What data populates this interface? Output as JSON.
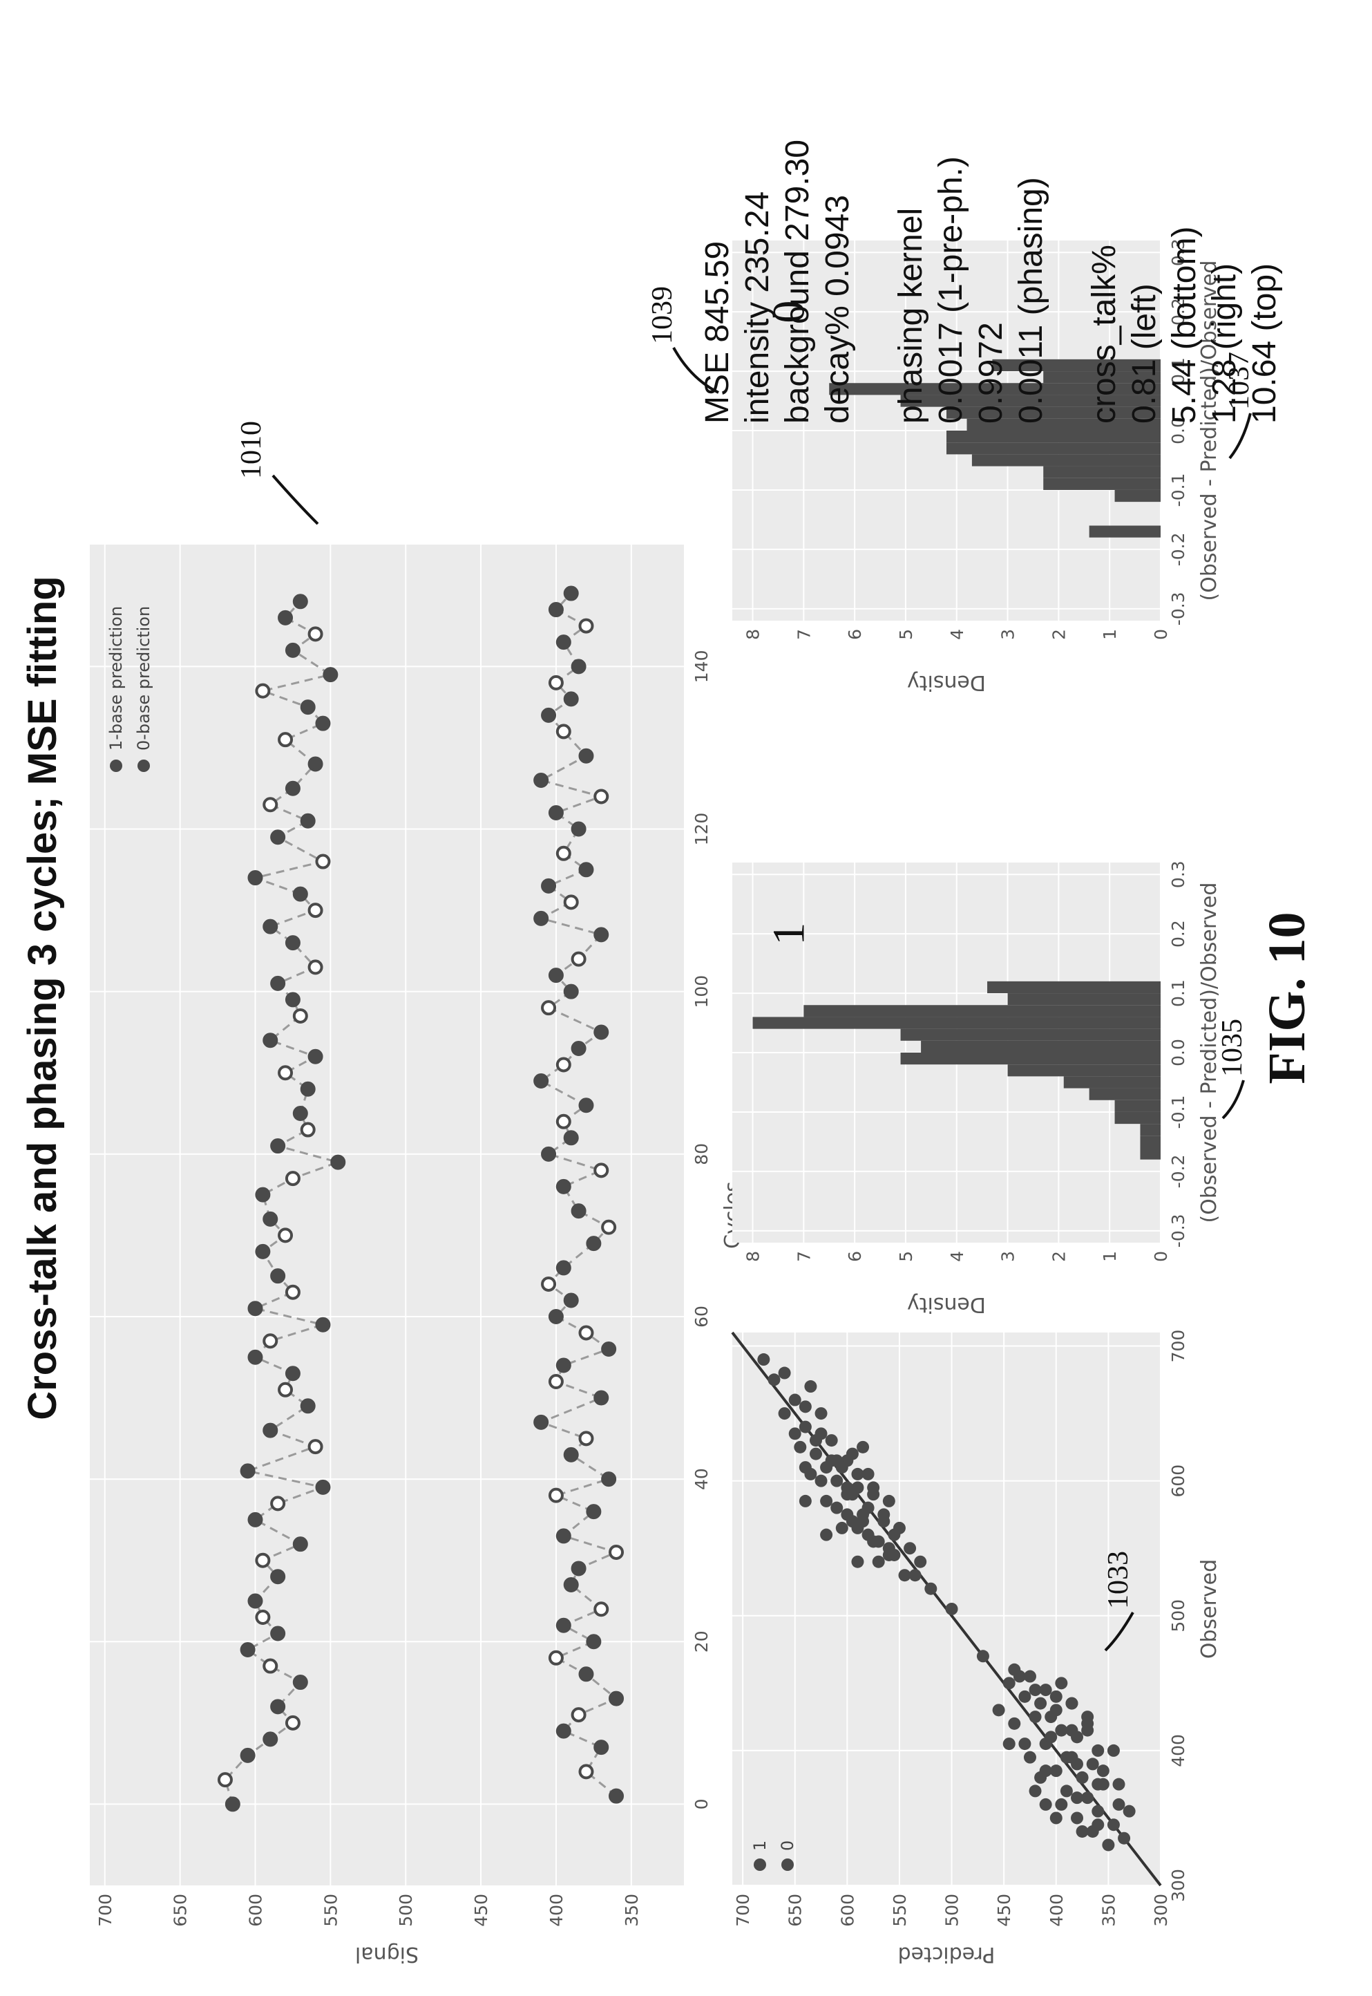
{
  "title": "Cross-talk and phasing 3 cycles; MSE fitting",
  "figure_label": "FIG. 10",
  "refs": {
    "main": "1010",
    "scatter": "1033",
    "hist1": "1035",
    "hist0": "1037",
    "stats": "1039"
  },
  "stats": {
    "mse": "MSE 845.59",
    "intensity": "intensity 235.24",
    "background": "background 279.30",
    "decay": "decay% 0.0943",
    "phasing_title": "phasing kernel",
    "phasing": [
      "0.0017 (1-pre-ph.)",
      "0.9972",
      "0.0011 (phasing)"
    ],
    "crosstalk_title": "cross_talk%",
    "crosstalk": [
      "0.81 (left)",
      "5.44 (bottom)",
      "1.28 (right)",
      "10.64 (top)"
    ]
  },
  "chart_data": [
    {
      "type": "scatter",
      "xlabel": "Cycles",
      "ylabel": "Signal",
      "xlim": [
        -10,
        155
      ],
      "ylim": [
        315,
        710
      ],
      "xticks": [
        0,
        20,
        40,
        60,
        80,
        100,
        120,
        140
      ],
      "yticks": [
        350,
        400,
        450,
        500,
        550,
        600,
        650,
        700
      ],
      "grid": true,
      "legend_position": "top-right",
      "legend": [
        "1-base prediction",
        "0-base prediction"
      ],
      "colors": {
        "observed": "#4a4a4a",
        "predicted_fill": "#ffffff",
        "line": "#9a9a9a",
        "bg": "#ebebeb",
        "grid": "#ffffff"
      },
      "series": [
        {
          "name": "1-base prediction",
          "x": [
            0,
            3,
            6,
            8,
            10,
            12,
            15,
            17,
            19,
            21,
            23,
            25,
            28,
            30,
            32,
            35,
            37,
            39,
            41,
            44,
            46,
            49,
            51,
            53,
            55,
            57,
            59,
            61,
            63,
            65,
            68,
            70,
            72,
            75,
            77,
            79,
            81,
            83,
            85,
            88,
            90,
            92,
            94,
            97,
            99,
            101,
            103,
            106,
            108,
            110,
            112,
            114,
            116,
            119,
            121,
            123,
            125,
            128,
            131,
            133,
            135,
            137,
            139,
            142,
            144,
            146,
            148
          ],
          "y": [
            615,
            620,
            605,
            590,
            575,
            585,
            570,
            590,
            605,
            585,
            595,
            600,
            585,
            595,
            570,
            600,
            585,
            555,
            605,
            560,
            590,
            565,
            580,
            575,
            600,
            590,
            555,
            600,
            575,
            585,
            595,
            580,
            590,
            595,
            575,
            545,
            585,
            565,
            570,
            565,
            580,
            560,
            590,
            570,
            575,
            585,
            560,
            575,
            590,
            560,
            570,
            600,
            555,
            585,
            565,
            590,
            575,
            560,
            580,
            555,
            565,
            595,
            550,
            575,
            560,
            580,
            570
          ]
        },
        {
          "name": "0-base prediction",
          "x": [
            1,
            4,
            7,
            9,
            11,
            13,
            16,
            18,
            20,
            22,
            24,
            27,
            29,
            31,
            33,
            36,
            38,
            40,
            43,
            45,
            47,
            50,
            52,
            54,
            56,
            58,
            60,
            62,
            64,
            66,
            69,
            71,
            73,
            76,
            78,
            80,
            82,
            84,
            86,
            89,
            91,
            93,
            95,
            98,
            100,
            102,
            104,
            107,
            109,
            111,
            113,
            115,
            117,
            120,
            122,
            124,
            126,
            129,
            132,
            134,
            136,
            138,
            140,
            143,
            145,
            147,
            149
          ],
          "y": [
            360,
            380,
            370,
            395,
            385,
            360,
            380,
            400,
            375,
            395,
            370,
            390,
            385,
            360,
            395,
            375,
            400,
            365,
            390,
            380,
            410,
            370,
            400,
            395,
            365,
            380,
            400,
            390,
            405,
            395,
            375,
            365,
            385,
            395,
            370,
            405,
            390,
            395,
            380,
            410,
            395,
            385,
            370,
            405,
            390,
            400,
            385,
            370,
            410,
            390,
            405,
            380,
            395,
            385,
            400,
            370,
            410,
            380,
            395,
            405,
            390,
            400,
            385,
            395,
            380,
            400,
            390
          ]
        }
      ]
    },
    {
      "type": "scatter",
      "xlabel": "Observed",
      "ylabel": "Predicted",
      "xlim": [
        300,
        710
      ],
      "ylim": [
        300,
        710
      ],
      "xticks": [
        300,
        400,
        500,
        600,
        700
      ],
      "yticks": [
        300,
        350,
        400,
        450,
        500,
        550,
        600,
        650,
        700
      ],
      "legend": [
        "1",
        "0"
      ],
      "legend_position": "top-left",
      "reference_line": [
        [
          300,
          300
        ],
        [
          710,
          710
        ]
      ],
      "series": [
        {
          "name": "1",
          "x": [
            505,
            520,
            530,
            540,
            545,
            550,
            555,
            560,
            565,
            570,
            575,
            580,
            585,
            590,
            595,
            600,
            605,
            610,
            615,
            620,
            625,
            630,
            640,
            650,
            660,
            670,
            680,
            690,
            540,
            555,
            565,
            575,
            585,
            595,
            605,
            615,
            625,
            635,
            545,
            560,
            570,
            580,
            590,
            600,
            610,
            620,
            530,
            550,
            570,
            590,
            610,
            630,
            650,
            560,
            575,
            595,
            615,
            635,
            655,
            675,
            540,
            565,
            585,
            605
          ],
          "y": [
            500,
            520,
            545,
            530,
            560,
            540,
            575,
            555,
            590,
            565,
            600,
            580,
            560,
            595,
            575,
            610,
            590,
            620,
            600,
            630,
            585,
            615,
            640,
            625,
            650,
            635,
            660,
            680,
            590,
            570,
            605,
            585,
            620,
            600,
            635,
            615,
            645,
            625,
            555,
            580,
            595,
            610,
            575,
            625,
            640,
            595,
            535,
            560,
            585,
            600,
            605,
            630,
            660,
            620,
            565,
            590,
            610,
            650,
            640,
            670,
            570,
            550,
            640,
            580
          ]
        },
        {
          "name": "0",
          "x": [
            330,
            335,
            340,
            345,
            350,
            355,
            360,
            365,
            370,
            375,
            380,
            385,
            390,
            395,
            400,
            405,
            410,
            415,
            420,
            425,
            430,
            435,
            440,
            445,
            450,
            455,
            460,
            470,
            350,
            365,
            375,
            385,
            395,
            405,
            415,
            425,
            435,
            445,
            340,
            360,
            380,
            400,
            420,
            440,
            355,
            370,
            390,
            410,
            430,
            450,
            345,
            375,
            395,
            415,
            435,
            455,
            360,
            385,
            405,
            425
          ],
          "y": [
            350,
            335,
            365,
            345,
            380,
            360,
            340,
            370,
            390,
            355,
            375,
            400,
            365,
            385,
            360,
            410,
            380,
            395,
            370,
            420,
            400,
            385,
            430,
            410,
            445,
            425,
            440,
            470,
            400,
            380,
            360,
            410,
            390,
            430,
            370,
            405,
            385,
            420,
            375,
            395,
            415,
            345,
            440,
            400,
            330,
            420,
            380,
            405,
            455,
            395,
            360,
            340,
            425,
            385,
            415,
            435,
            410,
            355,
            445,
            370
          ]
        }
      ]
    },
    {
      "type": "bar",
      "name_label": "1",
      "xlabel": "(Observed - Predicted)/Observed",
      "ylabel": "Density",
      "xlim": [
        -0.32,
        0.32
      ],
      "ylim": [
        0,
        8.4
      ],
      "xticks": [
        -0.3,
        -0.2,
        -0.1,
        0.0,
        0.1,
        0.2,
        0.3
      ],
      "xtick_labels": [
        "-0.3",
        "-0.2",
        "-0.1",
        "0.0",
        "0.1",
        "0.2",
        "0.3"
      ],
      "yticks": [
        0,
        1,
        2,
        3,
        4,
        5,
        6,
        7,
        8
      ],
      "bin_edges": [
        -0.18,
        -0.16,
        -0.14,
        -0.12,
        -0.1,
        -0.08,
        -0.06,
        -0.04,
        -0.02,
        0.0,
        0.02,
        0.04,
        0.06,
        0.08,
        0.1,
        0.12
      ],
      "values": [
        0.4,
        0.4,
        0.4,
        0.9,
        0.9,
        1.4,
        1.9,
        3.0,
        5.1,
        4.7,
        5.1,
        8.0,
        7.0,
        3.0,
        3.4
      ]
    },
    {
      "type": "bar",
      "name_label": "0",
      "xlabel": "(Observed - Predicted)/Observed",
      "ylabel": "Density",
      "xlim": [
        -0.32,
        0.32
      ],
      "ylim": [
        0,
        8.4
      ],
      "xticks": [
        -0.3,
        -0.2,
        -0.1,
        0.0,
        0.1,
        0.2,
        0.3
      ],
      "xtick_labels": [
        "-0.3",
        "-0.2",
        "-0.1",
        "0.0",
        "0.1",
        "0.2",
        "0.3"
      ],
      "yticks": [
        0,
        1,
        2,
        3,
        4,
        5,
        6,
        7,
        8
      ],
      "bin_edges": [
        -0.18,
        -0.16,
        -0.14,
        -0.12,
        -0.1,
        -0.08,
        -0.06,
        -0.04,
        -0.02,
        0.0,
        0.02,
        0.04,
        0.06,
        0.08,
        0.1,
        0.12
      ],
      "values": [
        1.4,
        0,
        0,
        0.9,
        2.3,
        2.3,
        3.7,
        4.2,
        4.2,
        3.8,
        4.2,
        5.1,
        6.5,
        2.3,
        3.3
      ]
    }
  ]
}
